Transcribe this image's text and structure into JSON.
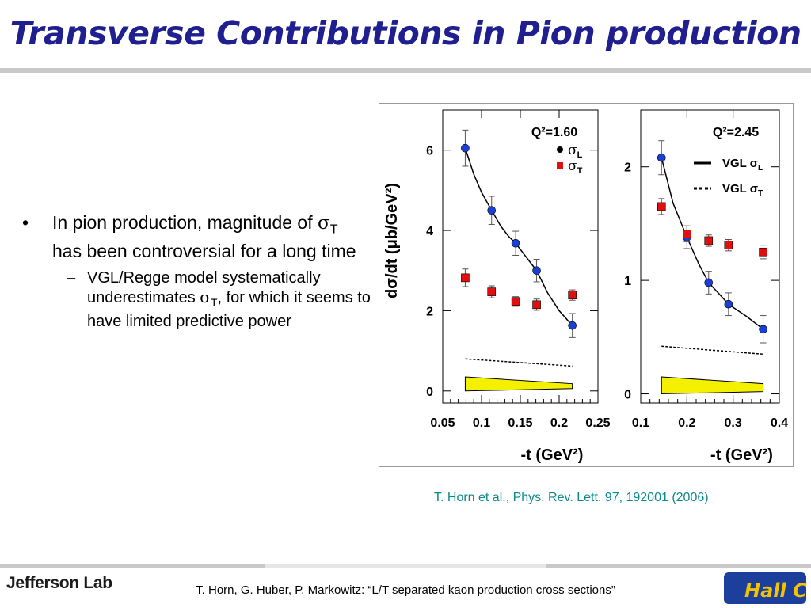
{
  "title": "Transverse Contributions in Pion production",
  "bullets": {
    "b1_pre": "In pion production, magnitude of ",
    "b1_sym": "σ",
    "b1_sub": "T",
    "b1_post": " has been controversial for a long time",
    "b2_line1": "VGL/Regge model systematically underestimates ",
    "b2_sym": "σ",
    "b2_sub": "T",
    "b2_post": ", for which it seems to have limited predictive power"
  },
  "citation": "T. Horn et al., Phys. Rev. Lett. 97, 192001 (2006)",
  "footer": {
    "text": "T. Horn, G. Huber, P. Markowitz: “L/T separated kaon production cross sections”",
    "logo_left": "Jefferson Lab",
    "logo_right": "Hall C"
  },
  "colors": {
    "title": "#1f1f8f",
    "sigmaL": "#1a3fd6",
    "sigmaT": "#e01010",
    "band": "#f5f000",
    "citation": "#0a8a8a"
  },
  "chart_data": [
    {
      "type": "scatter",
      "annotation": "Q²=1.60",
      "ylabel": "dσ/dt (μb/GeV²)",
      "xlabel": "-t (GeV²)",
      "xlim": [
        0.05,
        0.25
      ],
      "ylim": [
        -0.3,
        7.0
      ],
      "xticks": [
        "0.05",
        "0.1",
        "0.15",
        "0.2",
        "0.25"
      ],
      "yticks": [
        "0",
        "2",
        "4",
        "6"
      ],
      "legend": [
        {
          "label": "σL",
          "symbol": "circle"
        },
        {
          "label": "σT",
          "symbol": "square"
        }
      ],
      "series": [
        {
          "name": "σL",
          "marker": "circle",
          "x": [
            0.079,
            0.113,
            0.144,
            0.171,
            0.217
          ],
          "y": [
            6.05,
            4.5,
            3.68,
            3.0,
            1.63
          ],
          "err": [
            0.45,
            0.35,
            0.3,
            0.28,
            0.3
          ]
        },
        {
          "name": "σT",
          "marker": "square",
          "x": [
            0.079,
            0.113,
            0.144,
            0.171,
            0.217
          ],
          "y": [
            2.82,
            2.47,
            2.23,
            2.15,
            2.39
          ],
          "err": [
            0.22,
            0.15,
            0.12,
            0.14,
            0.13
          ]
        }
      ],
      "curves": [
        {
          "style": "solid",
          "x": [
            0.079,
            0.09,
            0.1,
            0.113,
            0.125,
            0.135,
            0.144,
            0.155,
            0.165,
            0.171,
            0.185,
            0.2,
            0.217
          ],
          "y": [
            6.05,
            5.4,
            4.95,
            4.5,
            4.1,
            3.85,
            3.68,
            3.4,
            3.15,
            3.0,
            2.45,
            2.0,
            1.63
          ]
        },
        {
          "style": "dashed",
          "x": [
            0.079,
            0.217
          ],
          "y": [
            0.8,
            0.62
          ]
        }
      ],
      "band": {
        "x": [
          0.079,
          0.217
        ],
        "upper": [
          0.35,
          0.18
        ],
        "lower": [
          0.0,
          0.06
        ]
      }
    },
    {
      "type": "scatter",
      "annotation": "Q²=2.45",
      "xlabel": "-t (GeV²)",
      "xlim": [
        0.1,
        0.4
      ],
      "ylim": [
        -0.08,
        2.5
      ],
      "xticks": [
        "0.1",
        "0.2",
        "0.3",
        "0.4"
      ],
      "yticks": [
        "0",
        "1",
        "2"
      ],
      "legend": [
        {
          "label": "VGL σL",
          "style": "solid"
        },
        {
          "label": "VGL σT",
          "style": "dotted"
        }
      ],
      "series": [
        {
          "name": "σL",
          "marker": "circle",
          "x": [
            0.145,
            0.2,
            0.247,
            0.29,
            0.365
          ],
          "y": [
            2.08,
            1.38,
            0.98,
            0.79,
            0.57
          ],
          "err": [
            0.15,
            0.1,
            0.1,
            0.1,
            0.12
          ]
        },
        {
          "name": "σT",
          "marker": "square",
          "x": [
            0.145,
            0.2,
            0.247,
            0.29,
            0.365
          ],
          "y": [
            1.65,
            1.41,
            1.35,
            1.31,
            1.25
          ],
          "err": [
            0.07,
            0.07,
            0.05,
            0.05,
            0.06
          ]
        }
      ],
      "curves": [
        {
          "style": "solid",
          "x": [
            0.145,
            0.17,
            0.2,
            0.225,
            0.247,
            0.27,
            0.29,
            0.33,
            0.365
          ],
          "y": [
            2.08,
            1.68,
            1.38,
            1.15,
            0.98,
            0.88,
            0.79,
            0.68,
            0.57
          ]
        },
        {
          "style": "dashed",
          "x": [
            0.145,
            0.365
          ],
          "y": [
            0.42,
            0.35
          ]
        }
      ],
      "band": {
        "x": [
          0.145,
          0.365
        ],
        "upper": [
          0.15,
          0.09
        ],
        "lower": [
          0.0,
          0.02
        ]
      }
    }
  ]
}
